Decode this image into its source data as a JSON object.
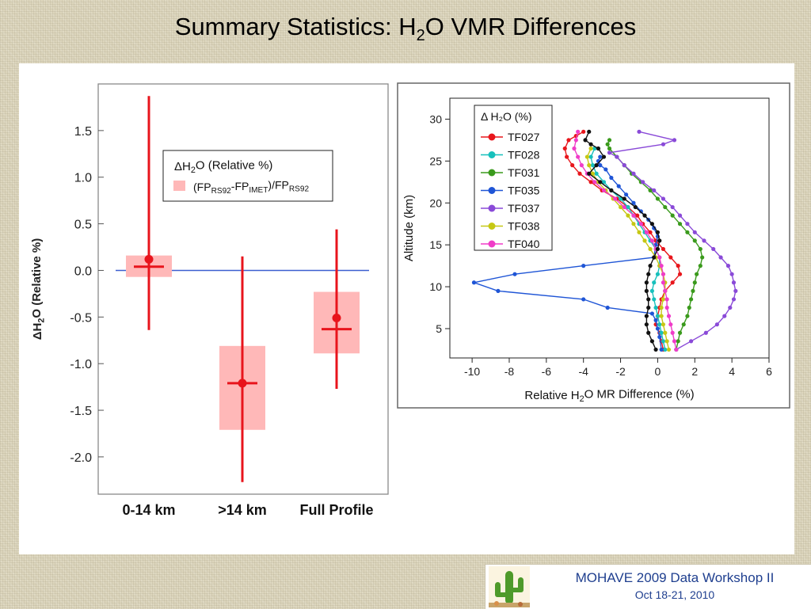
{
  "header": {
    "title_before_sub": "Summary Statistics:  H",
    "title_sub": "2",
    "title_after_sub": "O VMR Differences"
  },
  "footer": {
    "workshop": "MOHAVE 2009 Data Workshop II",
    "dates": "Oct 18-21, 2010"
  },
  "colors": {
    "errorbar": "#e8141c",
    "band": "#ffb8b8",
    "zero_line": "#3b5fcf"
  },
  "chart_data": [
    {
      "type": "scatter",
      "ylabel_parts": [
        "ΔH",
        "2",
        "O (Relative %)"
      ],
      "ylim": [
        -2.4,
        2.0
      ],
      "yticks": [
        "1.5",
        "1.0",
        "0.5",
        "0.0",
        "-0.5",
        "-1.0",
        "-1.5",
        "-2.0"
      ],
      "ytick_values": [
        1.5,
        1.0,
        0.5,
        0.0,
        -0.5,
        -1.0,
        -1.5,
        -2.0
      ],
      "categories": [
        "0-14 km",
        ">14 km",
        "Full Profile"
      ],
      "points": [
        {
          "mean": 0.12,
          "err_low": -0.64,
          "err_high": 1.87,
          "median": 0.04,
          "band_low": -0.07,
          "band_high": 0.16
        },
        {
          "mean": -1.21,
          "err_low": -2.27,
          "err_high": 0.15,
          "median": -1.21,
          "band_low": -1.71,
          "band_high": -0.81
        },
        {
          "mean": -0.51,
          "err_low": -1.27,
          "err_high": 0.44,
          "median": -0.63,
          "band_low": -0.89,
          "band_high": -0.23
        }
      ],
      "zero_line": 0.0,
      "legend": {
        "position": "top-right",
        "title_parts": [
          "ΔH",
          "2",
          "O (Relative %)"
        ],
        "entry_parts": [
          "(FP",
          "RS92",
          "-FP",
          "IMET",
          ")/FP",
          "RS92"
        ]
      }
    },
    {
      "type": "line",
      "xlabel_parts": [
        "Relative H",
        "2",
        "O MR Difference (%)"
      ],
      "ylabel": "Altitude (km)",
      "xlim": [
        -11.2,
        6.0
      ],
      "ylim": [
        1.5,
        32.5
      ],
      "xticks": [
        "-10",
        "-8",
        "-6",
        "-4",
        "-2",
        "0",
        "2",
        "4",
        "6"
      ],
      "xtick_values": [
        -10,
        -8,
        -6,
        -4,
        -2,
        0,
        2,
        4,
        6
      ],
      "yticks": [
        "30",
        "25",
        "20",
        "15",
        "10",
        "5"
      ],
      "ytick_values": [
        30,
        25,
        20,
        15,
        10,
        5
      ],
      "legend": {
        "position": "top-left",
        "title": "Δ H₂O (%)"
      },
      "series": [
        {
          "name": "TF027",
          "color": "#e8161c",
          "x": [
            0.3,
            0.2,
            0.1,
            -0.1,
            0,
            0.1,
            0.2,
            0.4,
            0.8,
            1.2,
            1.1,
            0.7,
            0.3,
            -0.1,
            -0.4,
            -0.8,
            -1.1,
            -1.6,
            -2.2,
            -3.0,
            -3.6,
            -4.2,
            -4.6,
            -4.9,
            -5.0,
            -4.8,
            -4.4,
            -4.0
          ],
          "y": [
            2.5,
            3.5,
            4.5,
            5.5,
            6.5,
            7.5,
            8.5,
            9.5,
            10.5,
            11.5,
            12.5,
            13.5,
            14.5,
            15.5,
            16.5,
            17.5,
            18.5,
            19.5,
            20.5,
            21.5,
            22.5,
            23.5,
            24.5,
            25.5,
            26.5,
            27.5,
            28.0,
            28.5
          ]
        },
        {
          "name": "TF028",
          "color": "#17c0bc",
          "x": [
            0.4,
            0.3,
            0.2,
            0.1,
            0,
            -0.1,
            -0.2,
            -0.3,
            -0.2,
            0,
            0.1,
            0.1,
            -0.1,
            -0.4,
            -0.7,
            -1.0,
            -1.3,
            -1.6,
            -2.0,
            -2.5,
            -2.9,
            -3.3,
            -3.5,
            -3.6,
            -3.4
          ],
          "y": [
            2.5,
            3.5,
            4.5,
            5.5,
            6.5,
            7.5,
            8.5,
            9.5,
            10.5,
            11.5,
            12.5,
            13.5,
            14.5,
            15.5,
            16.5,
            17.5,
            18.5,
            19.5,
            20.5,
            21.5,
            22.5,
            23.5,
            24.5,
            25.5,
            26.5
          ]
        },
        {
          "name": "TF031",
          "color": "#3a9a1c",
          "x": [
            1.0,
            1.1,
            1.2,
            1.4,
            1.6,
            1.7,
            1.8,
            1.9,
            2.0,
            2.1,
            2.3,
            2.4,
            2.3,
            2.0,
            1.6,
            1.2,
            0.8,
            0.4,
            0,
            -0.4,
            -0.9,
            -1.4,
            -1.8,
            -2.2,
            -2.6,
            -2.7,
            -2.6
          ],
          "y": [
            2.5,
            3.5,
            4.5,
            5.5,
            6.5,
            7.5,
            8.5,
            9.5,
            10.5,
            11.5,
            12.5,
            13.5,
            14.5,
            15.5,
            16.5,
            17.5,
            18.5,
            19.5,
            20.5,
            21.5,
            22.5,
            23.5,
            24.5,
            25.5,
            26.5,
            27.0,
            27.5
          ]
        },
        {
          "name": "TF035",
          "color": "#1f55d6",
          "x": [
            0.2,
            0.1,
            0,
            -0.1,
            -0.3,
            -2.7,
            -4.0,
            -8.6,
            -9.9,
            -7.7,
            -4.0,
            -0.2,
            -0.1,
            0,
            -0.2,
            -0.5,
            -0.9,
            -1.3,
            -1.7,
            -2.1,
            -2.5,
            -2.8,
            -3.1,
            -3.2,
            -3.1
          ],
          "y": [
            2.5,
            4.0,
            5.0,
            6.0,
            6.8,
            7.5,
            8.5,
            9.5,
            10.5,
            11.5,
            12.5,
            13.5,
            15.0,
            16.0,
            17.0,
            18.0,
            19.0,
            20.0,
            21.0,
            22.0,
            23.0,
            24.0,
            24.5,
            25.0,
            25.5
          ]
        },
        {
          "name": "TF037",
          "color": "#8a4ad8",
          "x": [
            1.0,
            1.8,
            2.6,
            3.2,
            3.6,
            3.9,
            4.1,
            4.2,
            4.1,
            4.0,
            3.8,
            3.4,
            3.0,
            2.5,
            2.0,
            1.6,
            1.2,
            0.8,
            0.3,
            -0.2,
            -0.8,
            -1.3,
            -1.8,
            -2.2,
            -2.6,
            0.3,
            0.9,
            -1.0
          ],
          "y": [
            2.5,
            3.5,
            4.5,
            5.5,
            6.5,
            7.5,
            8.5,
            9.5,
            10.5,
            11.5,
            12.5,
            13.5,
            14.5,
            15.5,
            16.5,
            17.5,
            18.5,
            19.5,
            20.5,
            21.5,
            22.5,
            23.5,
            24.5,
            25.5,
            26.0,
            27.0,
            27.5,
            28.5
          ]
        },
        {
          "name": "TF038",
          "color": "#c6c814",
          "x": [
            0.6,
            0.5,
            0.4,
            0.3,
            0.2,
            0.2,
            0.3,
            0.4,
            0.4,
            0.3,
            0.1,
            -0.1,
            -0.4,
            -0.7,
            -1.0,
            -1.3,
            -1.6,
            -2.0,
            -2.4,
            -2.8,
            -3.2,
            -3.5,
            -3.7,
            -3.8,
            -3.6
          ],
          "y": [
            2.5,
            3.5,
            4.5,
            5.5,
            6.5,
            7.5,
            8.5,
            9.5,
            10.5,
            11.5,
            12.5,
            13.5,
            14.5,
            15.5,
            16.5,
            17.5,
            18.5,
            19.5,
            20.5,
            21.5,
            22.5,
            23.5,
            24.5,
            25.5,
            26.5
          ]
        },
        {
          "name": "TF040",
          "color": "#f03cc8",
          "x": [
            1.0,
            0.9,
            0.8,
            0.7,
            0.6,
            0.5,
            0.5,
            0.4,
            0.3,
            0.3,
            0.2,
            0.1,
            -0.1,
            -0.3,
            -0.6,
            -0.9,
            -1.3,
            -1.8,
            -2.3,
            -2.9,
            -3.4,
            -3.8,
            -4.1,
            -4.3,
            -4.5,
            -4.4,
            -4.3
          ],
          "y": [
            2.5,
            3.5,
            4.5,
            5.5,
            6.5,
            7.5,
            8.5,
            9.5,
            10.5,
            11.5,
            12.5,
            13.5,
            14.5,
            15.5,
            16.5,
            17.5,
            18.5,
            19.5,
            20.5,
            21.5,
            22.5,
            23.5,
            24.5,
            25.5,
            26.5,
            27.5,
            28.5
          ]
        },
        {
          "color": "#111111",
          "x": [
            -0.1,
            -0.3,
            -0.5,
            -0.6,
            -0.6,
            -0.5,
            -0.5,
            -0.6,
            -0.6,
            -0.5,
            -0.4,
            -0.2,
            0,
            0.1,
            0,
            -0.3,
            -0.7,
            -1.2,
            -1.8,
            -2.5,
            -3.1,
            -3.7,
            -3.3,
            -2.9,
            -3.2,
            -3.6,
            -3.9,
            -3.7
          ],
          "y": [
            2.5,
            3.5,
            4.5,
            5.5,
            6.5,
            7.5,
            8.5,
            9.5,
            10.5,
            11.5,
            12.5,
            13.5,
            14.5,
            15.5,
            16.5,
            17.5,
            18.5,
            19.5,
            20.5,
            21.5,
            22.5,
            23.5,
            24.5,
            25.5,
            26.5,
            27.0,
            27.5,
            28.5
          ]
        }
      ]
    }
  ]
}
